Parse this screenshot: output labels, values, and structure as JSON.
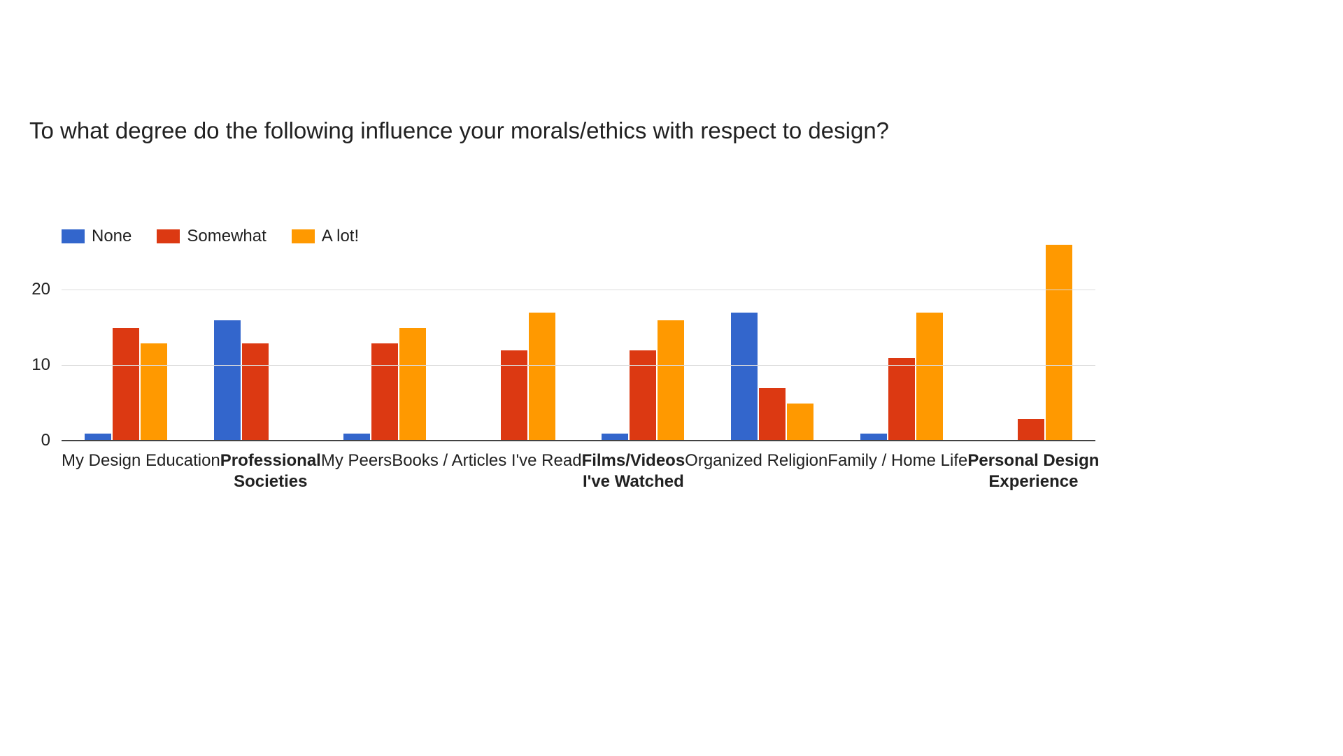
{
  "chart_data": {
    "type": "bar",
    "title": "To what degree do the following influence your morals/ethics with respect to design?",
    "categories": [
      {
        "label": "My Design Education",
        "lines": [
          "My Design Education"
        ],
        "bold": false
      },
      {
        "label": "Professional Societies",
        "lines": [
          "Professional",
          "Societies"
        ],
        "bold": true
      },
      {
        "label": "My Peers",
        "lines": [
          "My Peers"
        ],
        "bold": false
      },
      {
        "label": "Books / Articles I've Read",
        "lines": [
          "Books / Articles I've Read"
        ],
        "bold": false
      },
      {
        "label": "Films/Videos I've Watched",
        "lines": [
          "Films/Videos",
          "I've Watched"
        ],
        "bold": true
      },
      {
        "label": "Organized Religion",
        "lines": [
          "Organized Religion"
        ],
        "bold": false
      },
      {
        "label": "Family / Home Life",
        "lines": [
          "Family / Home Life"
        ],
        "bold": false
      },
      {
        "label": "Personal Design Experience",
        "lines": [
          "Personal Design",
          "Experience"
        ],
        "bold": true
      }
    ],
    "series": [
      {
        "name": "None",
        "color": "#3366CC",
        "values": [
          1,
          16,
          1,
          0,
          1,
          17,
          1,
          0
        ]
      },
      {
        "name": "Somewhat",
        "color": "#DC3912",
        "values": [
          15,
          13,
          13,
          12,
          12,
          7,
          11,
          3
        ]
      },
      {
        "name": "A lot!",
        "color": "#FF9900",
        "values": [
          13,
          0,
          15,
          17,
          16,
          5,
          17,
          26
        ]
      }
    ],
    "yticks": [
      0,
      10,
      20
    ],
    "ylim": [
      0,
      26.3
    ],
    "xlabel": "",
    "ylabel": "",
    "grid": true,
    "legend_position": "top-left",
    "background": "#ffffff"
  }
}
